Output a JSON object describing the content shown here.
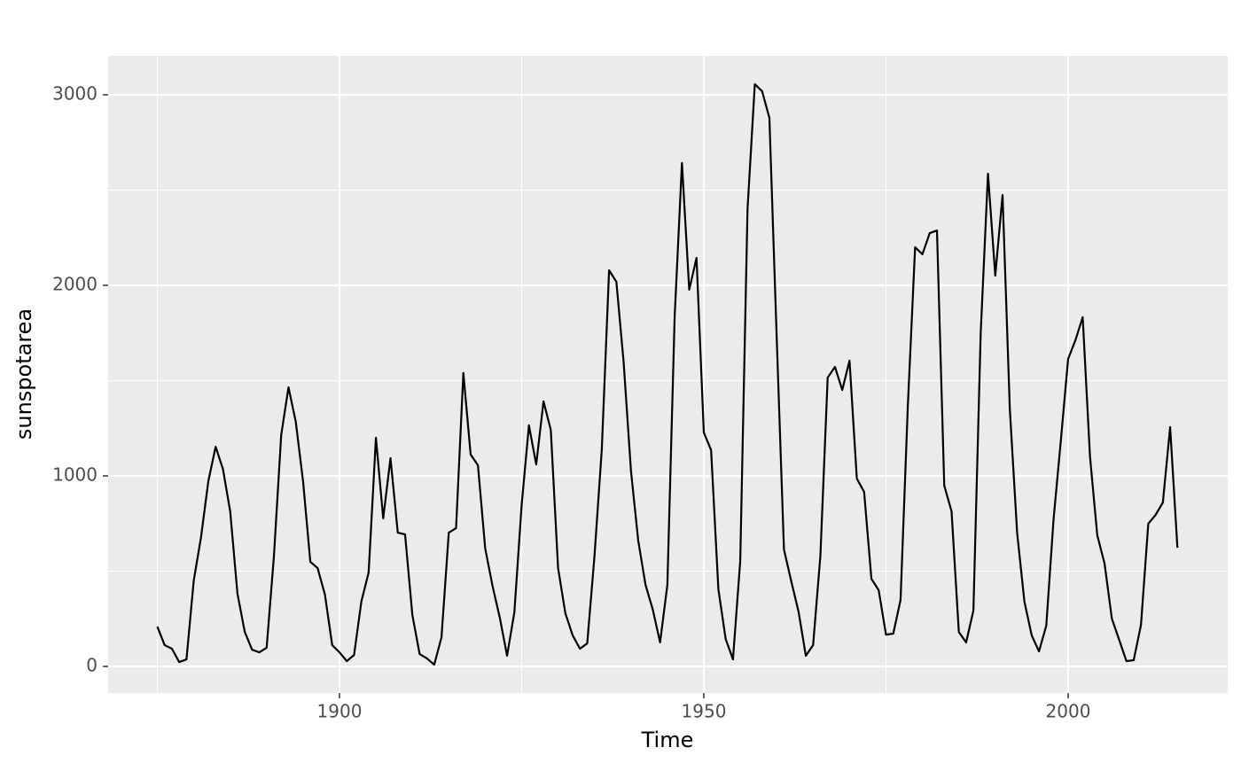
{
  "chart_data": {
    "type": "line",
    "x_label": "Time",
    "y_label": "sunspotarea",
    "x": [
      1875,
      1876,
      1877,
      1878,
      1879,
      1880,
      1881,
      1882,
      1883,
      1884,
      1885,
      1886,
      1887,
      1888,
      1889,
      1890,
      1891,
      1892,
      1893,
      1894,
      1895,
      1896,
      1897,
      1898,
      1899,
      1900,
      1901,
      1902,
      1903,
      1904,
      1905,
      1906,
      1907,
      1908,
      1909,
      1910,
      1911,
      1912,
      1913,
      1914,
      1915,
      1916,
      1917,
      1918,
      1919,
      1920,
      1921,
      1922,
      1923,
      1924,
      1925,
      1926,
      1927,
      1928,
      1929,
      1930,
      1931,
      1932,
      1933,
      1934,
      1935,
      1936,
      1937,
      1938,
      1939,
      1940,
      1941,
      1942,
      1943,
      1944,
      1945,
      1946,
      1947,
      1948,
      1949,
      1950,
      1951,
      1952,
      1953,
      1954,
      1955,
      1956,
      1957,
      1958,
      1959,
      1960,
      1961,
      1962,
      1963,
      1964,
      1965,
      1966,
      1967,
      1968,
      1969,
      1970,
      1971,
      1972,
      1973,
      1974,
      1975,
      1976,
      1977,
      1978,
      1979,
      1980,
      1981,
      1982,
      1983,
      1984,
      1985,
      1986,
      1987,
      1988,
      1989,
      1990,
      1991,
      1992,
      1993,
      1994,
      1995,
      1996,
      1997,
      1998,
      1999,
      2000,
      2001,
      2002,
      2003,
      2004,
      2005,
      2006,
      2007,
      2008,
      2009,
      2010,
      2011,
      2012,
      2013,
      2014,
      2015
    ],
    "series": [
      {
        "name": "sunspotarea",
        "color": "#000000",
        "values": [
          209,
          112,
          93,
          23,
          37,
          451,
          679,
          972,
          1153,
          1037,
          814,
          381,
          181,
          88,
          74,
          98,
          577,
          1214,
          1465,
          1284,
          972,
          549,
          516,
          377,
          112,
          74,
          28,
          60,
          340,
          493,
          1200,
          777,
          1093,
          702,
          693,
          270,
          65,
          42,
          9,
          153,
          702,
          726,
          1540,
          1112,
          1056,
          619,
          423,
          256,
          56,
          284,
          847,
          1265,
          1060,
          1391,
          1242,
          516,
          279,
          163,
          93,
          121,
          581,
          1140,
          2079,
          2019,
          1595,
          1028,
          660,
          428,
          298,
          126,
          428,
          1837,
          2642,
          1977,
          2144,
          1228,
          1135,
          405,
          144,
          37,
          553,
          2400,
          3056,
          3019,
          2879,
          1730,
          614,
          447,
          288,
          56,
          112,
          581,
          1516,
          1572,
          1451,
          1605,
          986,
          916,
          460,
          400,
          167,
          172,
          349,
          1367,
          2200,
          2163,
          2274,
          2288,
          949,
          814,
          181,
          126,
          293,
          1749,
          2586,
          2051,
          2474,
          1349,
          702,
          340,
          163,
          79,
          214,
          772,
          1186,
          1614,
          1712,
          1833,
          1102,
          688,
          540,
          251,
          140,
          28,
          33,
          219,
          749,
          795,
          860,
          1256,
          623
        ]
      }
    ],
    "xlim": [
      1868.25,
      2021.9
    ],
    "ylim": [
      -139.5,
      3204.6
    ],
    "xticks": [
      1900,
      1950,
      2000
    ],
    "yticks": [
      0,
      1000,
      2000,
      3000
    ],
    "x_minor": [
      1875,
      1925,
      1975
    ],
    "y_minor": [
      500,
      1500,
      2500
    ],
    "grid": true,
    "panel_color": "#ebebeb"
  }
}
